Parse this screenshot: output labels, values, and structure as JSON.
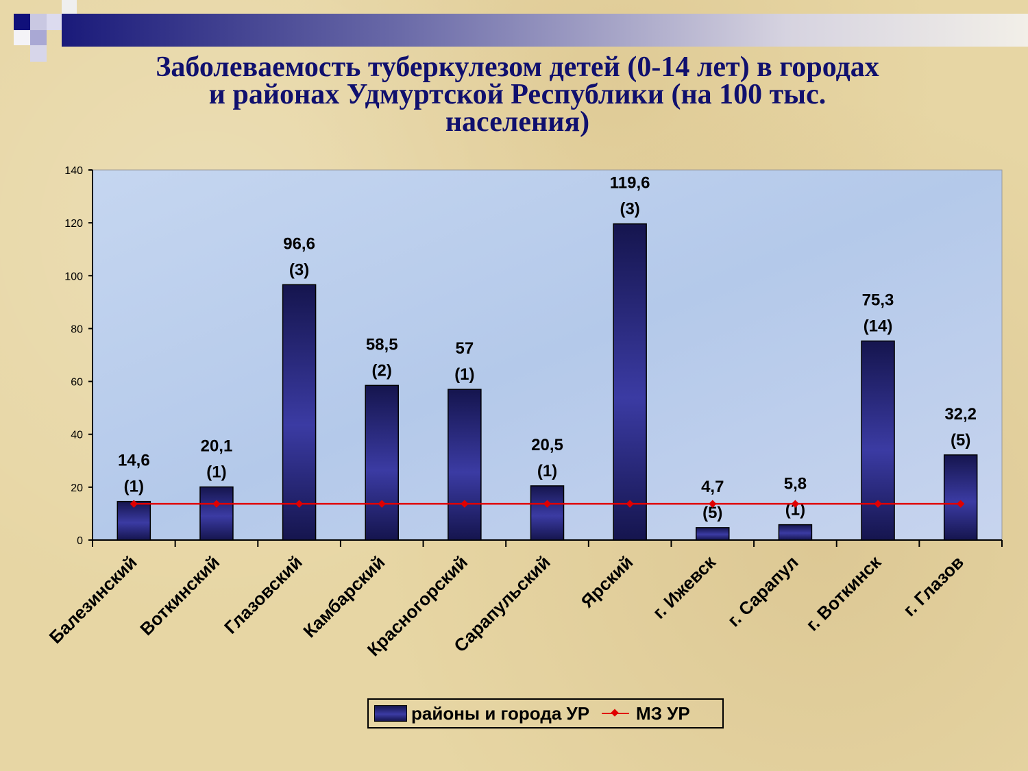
{
  "slide": {
    "title_lines": [
      "Заболеваемость туберкулезом детей (0-14 лет) в городах",
      "и районах Удмуртской Республики (на 100 тыс.",
      "населения)"
    ]
  },
  "colors": {
    "bar_dark": "#15154e",
    "bar_light": "#3b3ba3",
    "line": "#e00000",
    "title": "#10106e",
    "plot_bg": "#b8cdea"
  },
  "chart_data": {
    "type": "bar",
    "categories": [
      "Балезинский",
      "Воткинский",
      "Глазовский",
      "Камбарский",
      "Красногорский",
      "Сарапульский",
      "Ярский",
      "г. Ижевск",
      "г. Сарапул",
      "г. Воткинск",
      "г. Глазов"
    ],
    "series": [
      {
        "name": "районы и города УР",
        "type": "bar",
        "values": [
          14.6,
          20.1,
          96.6,
          58.5,
          57,
          20.5,
          119.6,
          4.7,
          5.8,
          75.3,
          32.2
        ],
        "value_labels": [
          "14,6",
          "20,1",
          "96,6",
          "58,5",
          "57",
          "20,5",
          "119,6",
          "4,7",
          "5,8",
          "75,3",
          "32,2"
        ],
        "count_labels": [
          "(1)",
          "(1)",
          "(3)",
          "(2)",
          "(1)",
          "(1)",
          "(3)",
          "(5)",
          "(1)",
          "(14)",
          "(5)"
        ]
      },
      {
        "name": "МЗ УР",
        "type": "line",
        "values": [
          13.7,
          13.7,
          13.7,
          13.7,
          13.7,
          13.7,
          13.7,
          13.7,
          13.7,
          13.7,
          13.7
        ]
      }
    ],
    "y_ticks": [
      "0",
      "20",
      "40",
      "60",
      "80",
      "100",
      "120",
      "140"
    ],
    "ylim": [
      0,
      140
    ],
    "legend_position": "bottom"
  }
}
